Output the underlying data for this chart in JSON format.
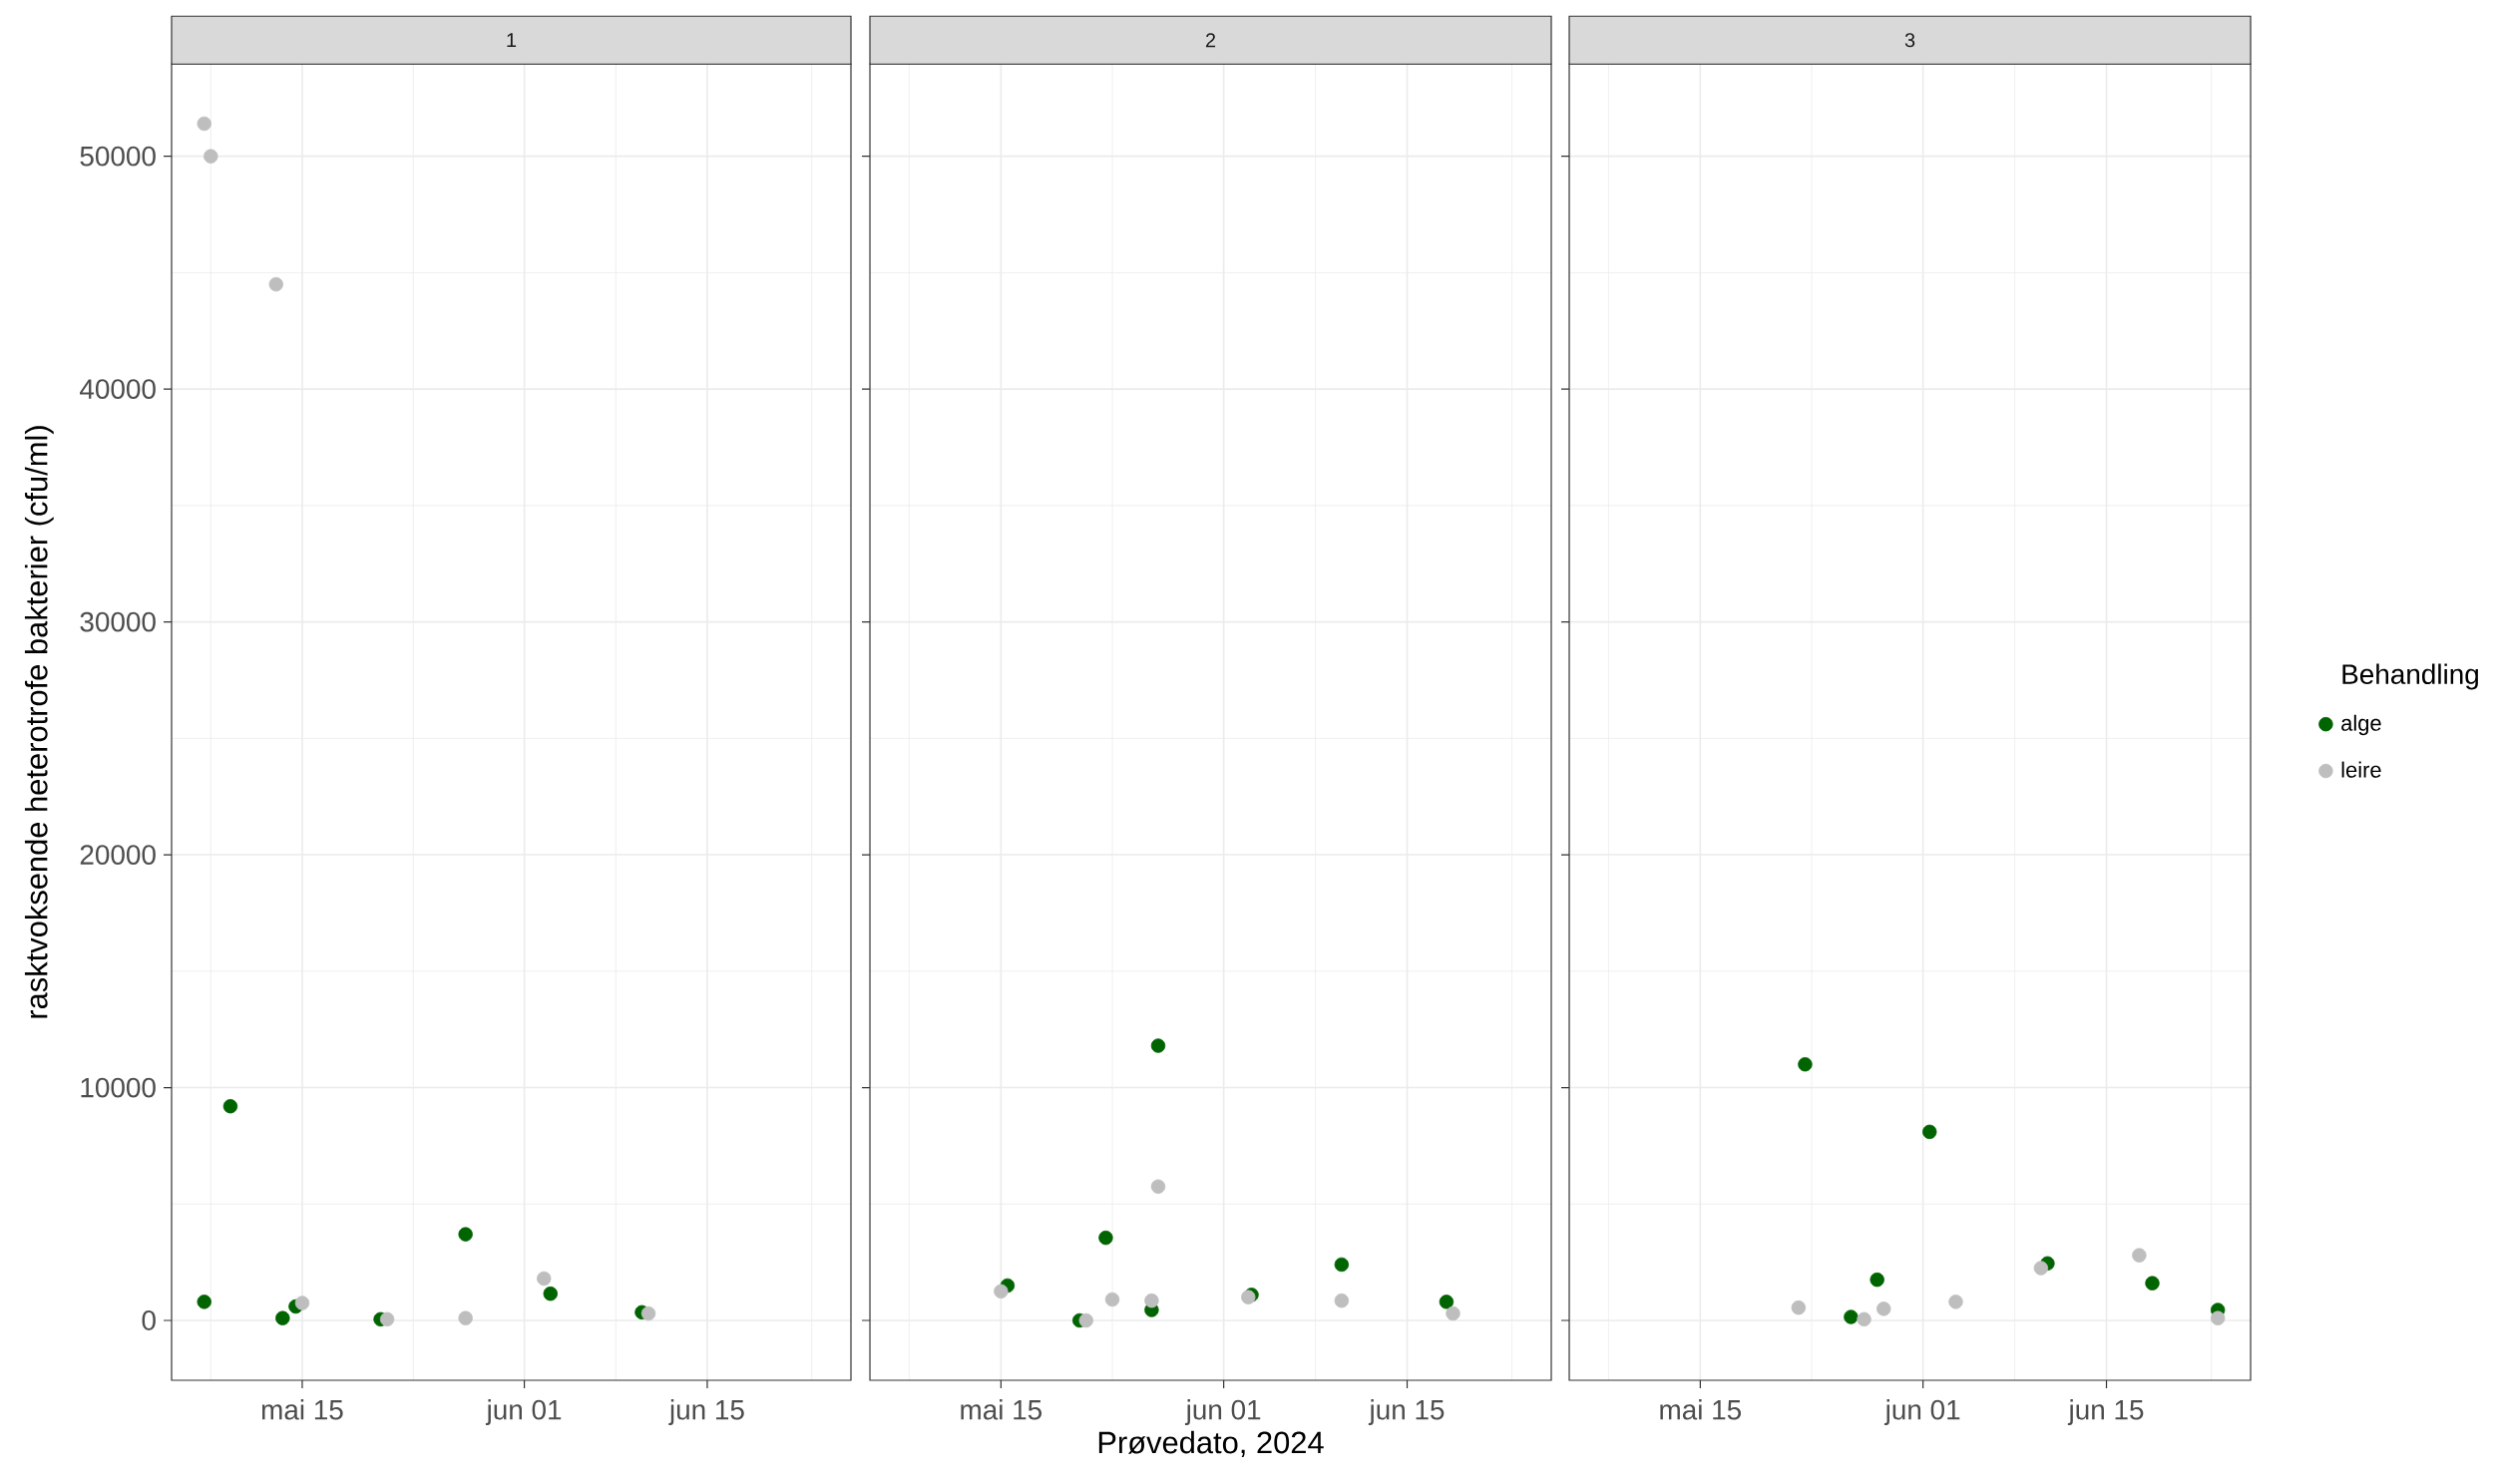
{
  "chart_data": [
    {
      "type": "scatter",
      "title": "1",
      "ylabel": "rasktvoksende heterotrofe bakterier (cfu/ml)",
      "grid": true,
      "marker": "circle",
      "xlim": [
        "2024-05-05",
        "2024-06-26"
      ],
      "ylim": [
        -2570,
        53970
      ],
      "xticks": [
        {
          "value": "2024-05-08",
          "label": null
        },
        {
          "value": "2024-05-15",
          "label": "mai 15"
        },
        {
          "value": "2024-05-23T12:00",
          "label": null
        },
        {
          "value": "2024-06-01",
          "label": "jun 01"
        },
        {
          "value": "2024-06-08",
          "label": null
        },
        {
          "value": "2024-06-15",
          "label": "jun 15"
        },
        {
          "value": "2024-06-23",
          "label": null
        }
      ],
      "yticks": [
        0,
        {
          "value": 5000,
          "label": null
        },
        10000,
        {
          "value": 15000,
          "label": null
        },
        20000,
        {
          "value": 25000,
          "label": null
        },
        30000,
        {
          "value": 35000,
          "label": null
        },
        40000,
        {
          "value": 45000,
          "label": null
        },
        50000
      ],
      "series": [
        {
          "color": "#006400",
          "x": [
            "2024-05-07T12:00",
            "2024-05-09T12:00",
            "2024-05-13T12:00",
            "2024-05-14T12:00",
            "2024-05-21",
            "2024-05-27T12:00",
            "2024-06-03",
            "2024-06-10"
          ],
          "values": [
            800,
            9200,
            100,
            600,
            50,
            3700,
            1150,
            350
          ]
        },
        {
          "color": "#bebebe",
          "x": [
            "2024-05-07T12:00",
            "2024-05-08",
            "2024-05-13",
            "2024-05-15",
            "2024-05-21T12:00",
            "2024-05-27T12:00",
            "2024-06-02T12:00",
            "2024-06-10T12:00"
          ],
          "values": [
            51400,
            50000,
            44500,
            750,
            50,
            100,
            1800,
            300
          ]
        }
      ]
    },
    {
      "type": "scatter",
      "title": "2",
      "xlabel": "Prøvedato, 2024",
      "grid": true,
      "marker": "circle",
      "tick_labels": "x",
      "xlim": [
        "2024-05-05",
        "2024-06-26"
      ],
      "ylim": [
        -2570,
        53970
      ],
      "xticks": [
        {
          "value": "2024-05-08",
          "label": null
        },
        {
          "value": "2024-05-15",
          "label": "mai 15"
        },
        {
          "value": "2024-05-23T12:00",
          "label": null
        },
        {
          "value": "2024-06-01",
          "label": "jun 01"
        },
        {
          "value": "2024-06-08",
          "label": null
        },
        {
          "value": "2024-06-15",
          "label": "jun 15"
        },
        {
          "value": "2024-06-23",
          "label": null
        }
      ],
      "yticks": [
        0,
        {
          "value": 5000,
          "label": null
        },
        10000,
        {
          "value": 15000,
          "label": null
        },
        20000,
        {
          "value": 25000,
          "label": null
        },
        30000,
        {
          "value": 35000,
          "label": null
        },
        40000,
        {
          "value": 45000,
          "label": null
        },
        50000
      ],
      "series": [
        {
          "color": "#006400",
          "x": [
            "2024-05-15T12:00",
            "2024-05-21",
            "2024-05-23",
            "2024-05-26T12:00",
            "2024-05-27",
            "2024-06-03T03:00",
            "2024-06-10",
            "2024-06-18"
          ],
          "values": [
            1500,
            0,
            3550,
            450,
            11800,
            1100,
            2400,
            800
          ]
        },
        {
          "color": "#bebebe",
          "x": [
            "2024-05-15",
            "2024-05-21T12:00",
            "2024-05-23T12:00",
            "2024-05-26T12:00",
            "2024-05-27",
            "2024-06-02T21:00",
            "2024-06-10",
            "2024-06-18T12:00"
          ],
          "values": [
            1250,
            0,
            900,
            850,
            5750,
            1000,
            850,
            300
          ]
        }
      ]
    },
    {
      "type": "scatter",
      "title": "3",
      "legend_title": "Behandling",
      "legend": "right",
      "grid": true,
      "marker": "circle",
      "tick_labels": "x",
      "xlim": [
        "2024-05-05",
        "2024-06-26"
      ],
      "ylim": [
        -2570,
        53970
      ],
      "xticks": [
        {
          "value": "2024-05-08",
          "label": null
        },
        {
          "value": "2024-05-15",
          "label": "mai 15"
        },
        {
          "value": "2024-05-23T12:00",
          "label": null
        },
        {
          "value": "2024-06-01",
          "label": "jun 01"
        },
        {
          "value": "2024-06-08",
          "label": null
        },
        {
          "value": "2024-06-15",
          "label": "jun 15"
        },
        {
          "value": "2024-06-23",
          "label": null
        }
      ],
      "yticks": [
        0,
        {
          "value": 5000,
          "label": null
        },
        10000,
        {
          "value": 15000,
          "label": null
        },
        20000,
        {
          "value": 25000,
          "label": null
        },
        30000,
        {
          "value": 35000,
          "label": null
        },
        40000,
        {
          "value": 45000,
          "label": null
        },
        50000
      ],
      "series": [
        {
          "name": "alge",
          "color": "#006400",
          "x": [
            "2024-05-23",
            "2024-05-26T12:00",
            "2024-05-28T12:00",
            "2024-06-01T12:00",
            "2024-06-10T12:00",
            "2024-06-18T12:00",
            "2024-06-23T12:00"
          ],
          "values": [
            11000,
            150,
            1750,
            8100,
            2450,
            1600,
            450
          ]
        },
        {
          "name": "leire",
          "color": "#bebebe",
          "x": [
            "2024-05-22T12:00",
            "2024-05-27T12:00",
            "2024-05-29",
            "2024-06-03T12:00",
            "2024-06-10",
            "2024-06-17T12:00",
            "2024-06-23T12:00"
          ],
          "values": [
            550,
            50,
            500,
            800,
            2250,
            2800,
            100
          ]
        }
      ]
    }
  ]
}
